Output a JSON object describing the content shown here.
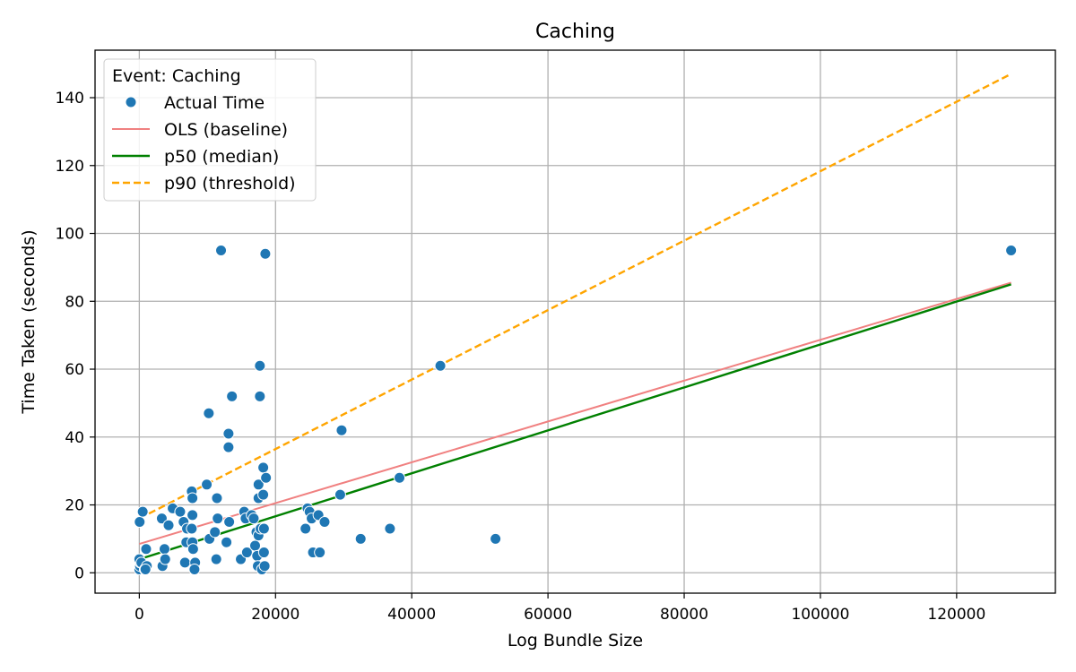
{
  "chart_data": {
    "type": "scatter",
    "title": "Caching",
    "xlabel": "Log Bundle Size",
    "ylabel": "Time Taken (seconds)",
    "xlim": [
      -6500,
      134500
    ],
    "ylim": [
      -6,
      154
    ],
    "xticks": [
      0,
      20000,
      40000,
      60000,
      80000,
      100000,
      120000
    ],
    "yticks": [
      0,
      20,
      40,
      60,
      80,
      100,
      120,
      140
    ],
    "grid": true,
    "legend": {
      "title": "Event: Caching",
      "placement": "top-left",
      "entries": [
        {
          "label": "Actual Time",
          "kind": "marker",
          "color": "#1f77b4"
        },
        {
          "label": "OLS (baseline)",
          "kind": "line",
          "color": "#f08080",
          "dash": "solid"
        },
        {
          "label": "p50 (median)",
          "kind": "line",
          "color": "#008000",
          "dash": "solid"
        },
        {
          "label": "p90 (threshold)",
          "kind": "line",
          "color": "#ffa500",
          "dash": "dashed"
        }
      ]
    },
    "series": [
      {
        "name": "Actual Time",
        "type": "scatter",
        "color": "#1f77b4",
        "points": [
          [
            0,
            1
          ],
          [
            100,
            2
          ],
          [
            150,
            3
          ],
          [
            0,
            4
          ],
          [
            300,
            3
          ],
          [
            50,
            15
          ],
          [
            500,
            18
          ],
          [
            800,
            1
          ],
          [
            1000,
            7
          ],
          [
            1100,
            2
          ],
          [
            900,
            1
          ],
          [
            3300,
            16
          ],
          [
            3400,
            2
          ],
          [
            3700,
            7
          ],
          [
            3800,
            4
          ],
          [
            4300,
            14
          ],
          [
            4900,
            19
          ],
          [
            6000,
            18
          ],
          [
            6500,
            15
          ],
          [
            6700,
            3
          ],
          [
            6900,
            9
          ],
          [
            7000,
            13
          ],
          [
            7700,
            24
          ],
          [
            7800,
            22
          ],
          [
            7800,
            17
          ],
          [
            7700,
            13
          ],
          [
            7800,
            9
          ],
          [
            7900,
            7
          ],
          [
            8200,
            3
          ],
          [
            8100,
            1
          ],
          [
            9900,
            26
          ],
          [
            10200,
            47
          ],
          [
            10300,
            10
          ],
          [
            11100,
            12
          ],
          [
            11300,
            4
          ],
          [
            11400,
            22
          ],
          [
            11500,
            16
          ],
          [
            12000,
            95
          ],
          [
            12800,
            9
          ],
          [
            13100,
            41
          ],
          [
            13100,
            37
          ],
          [
            13200,
            15
          ],
          [
            13600,
            52
          ],
          [
            14900,
            4
          ],
          [
            15400,
            18
          ],
          [
            15600,
            16
          ],
          [
            15800,
            6
          ],
          [
            16500,
            17
          ],
          [
            16800,
            16
          ],
          [
            17000,
            8
          ],
          [
            17200,
            12
          ],
          [
            17300,
            5
          ],
          [
            17400,
            2
          ],
          [
            17500,
            26
          ],
          [
            17500,
            22
          ],
          [
            17500,
            11
          ],
          [
            17700,
            61
          ],
          [
            17700,
            52
          ],
          [
            17800,
            13
          ],
          [
            18000,
            1
          ],
          [
            18200,
            31
          ],
          [
            18200,
            23
          ],
          [
            18300,
            13
          ],
          [
            18300,
            6
          ],
          [
            18400,
            2
          ],
          [
            18500,
            94
          ],
          [
            18600,
            28
          ],
          [
            24400,
            13
          ],
          [
            24700,
            19
          ],
          [
            25000,
            18
          ],
          [
            25300,
            16
          ],
          [
            25500,
            6
          ],
          [
            26300,
            17
          ],
          [
            26500,
            6
          ],
          [
            27200,
            15
          ],
          [
            29500,
            23
          ],
          [
            29700,
            42
          ],
          [
            32500,
            10
          ],
          [
            36800,
            13
          ],
          [
            38200,
            28
          ],
          [
            44200,
            61
          ],
          [
            52300,
            10
          ],
          [
            128000,
            95
          ]
        ]
      },
      {
        "name": "OLS (baseline)",
        "type": "line",
        "color": "#f08080",
        "dash": "solid",
        "points": [
          [
            0,
            8.5
          ],
          [
            128000,
            85.5
          ]
        ]
      },
      {
        "name": "p50 (median)",
        "type": "line",
        "color": "#008000",
        "dash": "solid",
        "points": [
          [
            0,
            4
          ],
          [
            128000,
            85
          ]
        ]
      },
      {
        "name": "p90 (threshold)",
        "type": "line",
        "color": "#ffa500",
        "dash": "dashed",
        "points": [
          [
            0,
            16
          ],
          [
            128000,
            147
          ]
        ]
      }
    ]
  }
}
